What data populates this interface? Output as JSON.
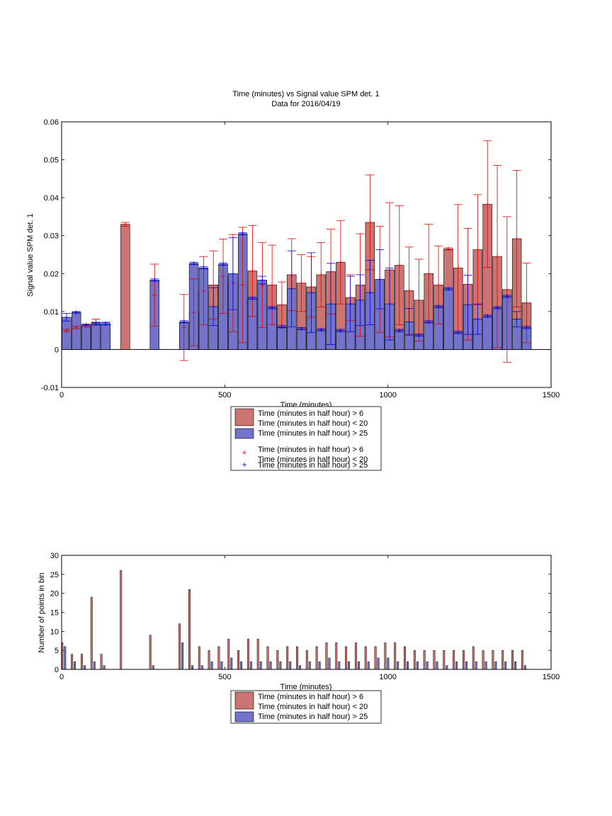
{
  "colors": {
    "red_fill": "#cc7373",
    "blue_fill": "#7373cc",
    "red_line": "#e00000",
    "blue_line": "#0000e0"
  },
  "chart_data": [
    {
      "type": "bar",
      "title": "Time (minutes) vs Signal value SPM det. 1",
      "subtitle": "Data for 2016/04/19",
      "xlabel": "Time (minutes)",
      "ylabel": "Signal value SPM det. 1",
      "xlim": [
        0,
        1500
      ],
      "ylim": [
        -0.01,
        0.06
      ],
      "xticks": [
        "0",
        "500",
        "1000",
        "1500"
      ],
      "yticks": [
        "-0.01",
        "0",
        "0.01",
        "0.02",
        "0.03",
        "0.04",
        "0.05",
        "0.06"
      ],
      "grid": false,
      "legend_position": "below",
      "legend": [
        "Time (minutes in half hour) > 6\nTime (minutes in half hour) < 20",
        "Time (minutes in half hour) > 25",
        "Time (minutes in half hour) > 6\nTime (minutes in half hour) < 20",
        "Time (minutes in half hour) > 25"
      ],
      "series": [
        {
          "legend_index": 0,
          "color": "red",
          "points": [
            [
              15,
              0.005,
              0.0003
            ],
            [
              45,
              0.0058,
              0.0003
            ],
            [
              75,
              0.0062,
              0.0003
            ],
            [
              105,
              0.0072,
              0.0008
            ],
            [
              135,
              0.0068,
              0.0004
            ],
            [
              195,
              0.033,
              0.0005
            ],
            [
              285,
              0.0143,
              0.0082
            ],
            [
              375,
              0.0058,
              0.0087
            ],
            [
              405,
              0.0098,
              0.0088
            ],
            [
              435,
              0.0155,
              0.009
            ],
            [
              465,
              0.017,
              0.009
            ],
            [
              495,
              0.0193,
              0.0098
            ],
            [
              525,
              0.0175,
              0.0128
            ],
            [
              555,
              0.017,
              0.0152
            ],
            [
              585,
              0.0207,
              0.012
            ],
            [
              615,
              0.017,
              0.0112
            ],
            [
              645,
              0.017,
              0.0105
            ],
            [
              675,
              0.0118,
              0.006
            ],
            [
              705,
              0.0197,
              0.0095
            ],
            [
              735,
              0.0175,
              0.0075
            ],
            [
              765,
              0.0165,
              0.008
            ],
            [
              795,
              0.0197,
              0.0085
            ],
            [
              825,
              0.0205,
              0.0112
            ],
            [
              855,
              0.023,
              0.011
            ],
            [
              885,
              0.0137,
              0.006
            ],
            [
              915,
              0.017,
              0.0135
            ],
            [
              945,
              0.0335,
              0.0125
            ],
            [
              975,
              0.0185,
              0.014
            ],
            [
              1005,
              0.021,
              0.0177
            ],
            [
              1035,
              0.0222,
              0.0157
            ],
            [
              1065,
              0.0155,
              0.0115
            ],
            [
              1095,
              0.013,
              0.0108
            ],
            [
              1125,
              0.02,
              0.013
            ],
            [
              1155,
              0.017,
              0.0103
            ],
            [
              1185,
              0.0265,
              0.0003
            ],
            [
              1215,
              0.0215,
              0.0167
            ],
            [
              1245,
              0.0172,
              0.0147
            ],
            [
              1275,
              0.0263,
              0.0145
            ],
            [
              1305,
              0.0383,
              0.0167
            ],
            [
              1335,
              0.0245,
              0.024
            ],
            [
              1365,
              0.0158,
              0.0192
            ],
            [
              1395,
              0.0292,
              0.018
            ],
            [
              1425,
              0.0123,
              0.0105
            ]
          ]
        },
        {
          "legend_index": 1,
          "color": "blue",
          "points": [
            [
              15,
              0.0085,
              0.001
            ],
            [
              45,
              0.0098,
              0.0002
            ],
            [
              75,
              0.0065,
              0.0002
            ],
            [
              105,
              0.0068,
              0.0003
            ],
            [
              135,
              0.0068,
              0.0003
            ],
            [
              285,
              0.0183,
              0.0003
            ],
            [
              375,
              0.0073,
              0.0003
            ],
            [
              405,
              0.0227,
              0.0003
            ],
            [
              435,
              0.0215,
              0.0003
            ],
            [
              465,
              0.0113,
              0.005
            ],
            [
              495,
              0.0225,
              0.0003
            ],
            [
              525,
              0.02,
              0.0095
            ],
            [
              555,
              0.0305,
              0.0003
            ],
            [
              585,
              0.0135,
              0.0003
            ],
            [
              615,
              0.0183,
              0.001
            ],
            [
              645,
              0.011,
              0.0003
            ],
            [
              675,
              0.006,
              0.0003
            ],
            [
              705,
              0.016,
              0.01
            ],
            [
              735,
              0.0055,
              0.0003
            ],
            [
              765,
              0.015,
              0.0105
            ],
            [
              795,
              0.0052,
              0.0003
            ],
            [
              825,
              0.012,
              0.0107
            ],
            [
              855,
              0.005,
              0.0003
            ],
            [
              885,
              0.012,
              0.0073
            ],
            [
              915,
              0.013,
              0.0067
            ],
            [
              945,
              0.015,
              0.0085
            ],
            [
              975,
              0.0185,
              0.0078
            ],
            [
              1005,
              0.012,
              0.0095
            ],
            [
              1035,
              0.005,
              0.0003
            ],
            [
              1065,
              0.0073,
              0.0035
            ],
            [
              1095,
              0.0038,
              0.0003
            ],
            [
              1125,
              0.0073,
              0.0003
            ],
            [
              1155,
              0.0113,
              0.0003
            ],
            [
              1185,
              0.016,
              0.0003
            ],
            [
              1215,
              0.0045,
              0.0003
            ],
            [
              1245,
              0.0118,
              0.0078
            ],
            [
              1275,
              0.008,
              0.004
            ],
            [
              1305,
              0.0088,
              0.0003
            ],
            [
              1335,
              0.011,
              0.0003
            ],
            [
              1365,
              0.014,
              0.0003
            ],
            [
              1395,
              0.008,
              0.002
            ],
            [
              1425,
              0.0058,
              0.0003
            ]
          ]
        }
      ]
    },
    {
      "type": "bar",
      "title": "",
      "xlabel": "Time (minutes)",
      "ylabel": "Number of points in bin",
      "xlim": [
        0,
        1500
      ],
      "ylim": [
        0,
        30
      ],
      "xticks": [
        "0",
        "500",
        "1000",
        "1500"
      ],
      "yticks": [
        "0",
        "5",
        "10",
        "15",
        "20",
        "25",
        "30"
      ],
      "grid": false,
      "legend_position": "below",
      "legend": [
        "Time (minutes in half hour) > 6\nTime (minutes in half hour) < 20",
        "Time (minutes in half hour) > 25"
      ],
      "x": [
        5,
        35,
        65,
        95,
        125,
        185,
        275,
        365,
        395,
        425,
        455,
        485,
        515,
        545,
        575,
        605,
        635,
        665,
        695,
        725,
        755,
        785,
        815,
        845,
        875,
        905,
        935,
        965,
        995,
        1025,
        1055,
        1085,
        1115,
        1145,
        1175,
        1205,
        1235,
        1265,
        1295,
        1325,
        1355,
        1385,
        1415
      ],
      "series": [
        {
          "name": "Time (minutes in half hour) > 6 / < 20",
          "values": [
            7,
            4,
            4,
            19,
            4,
            26,
            9,
            12,
            21,
            6,
            5,
            6,
            8,
            5,
            8,
            8,
            6,
            5,
            6,
            6,
            5,
            6,
            7,
            7,
            6,
            7,
            6,
            6,
            7,
            7,
            6,
            5,
            5,
            5,
            5,
            5,
            5,
            6,
            5,
            5,
            5,
            5,
            5
          ]
        },
        {
          "name": "Time (minutes in half hour) > 25",
          "values": [
            6,
            2,
            1,
            2,
            1,
            0,
            1,
            7,
            1,
            1,
            2,
            2,
            3,
            2,
            2,
            2,
            2,
            2,
            2,
            1,
            2,
            2,
            3,
            2,
            2,
            2,
            2,
            3,
            3,
            2,
            2,
            2,
            2,
            2,
            1,
            2,
            2,
            2,
            2,
            2,
            2,
            2,
            1
          ]
        }
      ]
    }
  ]
}
